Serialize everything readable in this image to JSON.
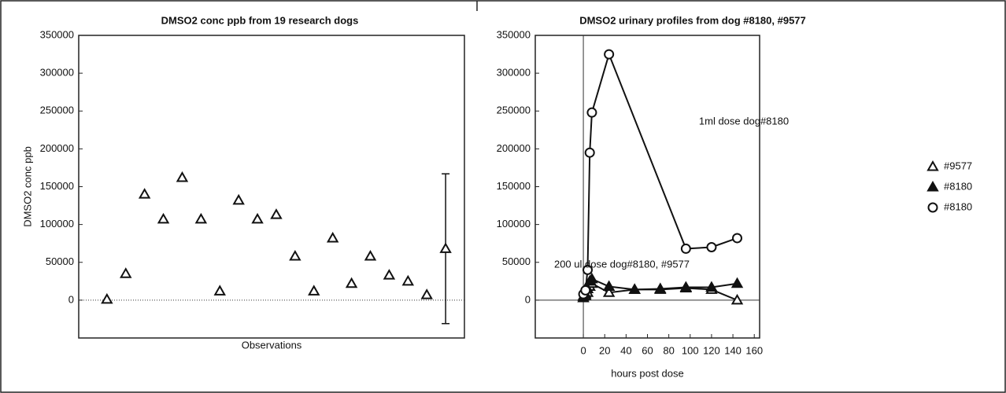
{
  "chart_data": [
    {
      "type": "scatter",
      "title": "DMSO2 conc ppb from 19 research dogs",
      "ylabel": "DMSO2 conc ppb",
      "xlabel": "Observations",
      "xlim": [
        -0.5,
        20
      ],
      "ylim": [
        -50000,
        350000
      ],
      "yticks": [
        0,
        50000,
        100000,
        150000,
        200000,
        250000,
        300000,
        350000
      ],
      "zero_line": "dotted",
      "series": [
        {
          "marker": "triangle-open",
          "color": "#111111",
          "x": [
            1,
            2,
            3,
            4,
            5,
            6,
            7,
            8,
            9,
            10,
            11,
            12,
            13,
            14,
            15,
            16,
            17,
            18
          ],
          "values": [
            1000,
            35000,
            140000,
            107000,
            162000,
            107000,
            12000,
            132000,
            107000,
            113000,
            58000,
            12000,
            82000,
            22000,
            58000,
            33000,
            25000,
            7000
          ]
        },
        {
          "marker": "triangle-open",
          "color": "#111111",
          "x": [
            19
          ],
          "values": [
            68000
          ],
          "errors": [
            99000
          ]
        }
      ]
    },
    {
      "type": "line",
      "title": "DMSO2 urinary profiles from dog #8180, #9577",
      "xlabel": "hours post dose",
      "xlim": [
        -45,
        165
      ],
      "ylim": [
        -50000,
        350000
      ],
      "xticks": [
        0,
        20,
        40,
        60,
        80,
        100,
        120,
        140,
        160
      ],
      "yticks": [
        0,
        50000,
        100000,
        150000,
        200000,
        250000,
        300000,
        350000
      ],
      "annotations": [
        "1ml dose dog#8180",
        "200 ul dose dog#8180, #9577"
      ],
      "legend": "right",
      "series": [
        {
          "name": "#9577",
          "marker": "triangle-open",
          "color": "#111111",
          "x": [
            0,
            2,
            4,
            6,
            8,
            24,
            48,
            72,
            96,
            120,
            144
          ],
          "values": [
            3000,
            6000,
            10000,
            18000,
            22000,
            10000,
            14000,
            14000,
            16000,
            14000,
            0
          ]
        },
        {
          "name": "#8180",
          "marker": "triangle-filled",
          "color": "#111111",
          "x": [
            0,
            2,
            4,
            6,
            8,
            24,
            48,
            72,
            96,
            120,
            144
          ],
          "values": [
            5000,
            8000,
            15000,
            25000,
            28000,
            18000,
            14000,
            15000,
            17000,
            17000,
            22000
          ]
        },
        {
          "name": "#8180",
          "marker": "circle-open",
          "color": "#111111",
          "x": [
            0,
            2,
            4,
            6,
            8,
            24,
            96,
            120,
            144
          ],
          "values": [
            8000,
            13000,
            40000,
            195000,
            248000,
            325000,
            68000,
            70000,
            82000
          ]
        }
      ]
    }
  ]
}
